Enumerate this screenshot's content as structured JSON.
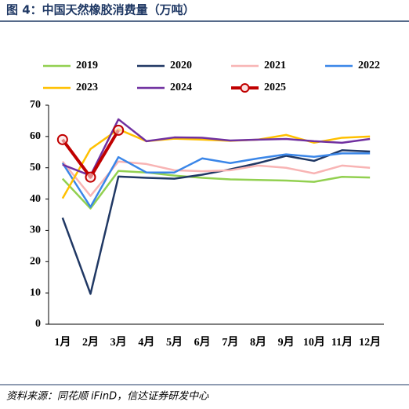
{
  "chart_data": {
    "type": "line",
    "title": "图 4：中国天然橡胶消费量（万吨）",
    "source": "资料来源：同花顺 iFinD，信达证券研发中心",
    "categories": [
      "1月",
      "2月",
      "3月",
      "4月",
      "5月",
      "6月",
      "7月",
      "8月",
      "9月",
      "10月",
      "11月",
      "12月"
    ],
    "ylim": [
      0,
      70
    ],
    "yticks": [
      0,
      10,
      20,
      30,
      40,
      50,
      60,
      70
    ],
    "series": [
      {
        "name": "2019",
        "color": "#92d050",
        "values": [
          46.5,
          37,
          49,
          48.5,
          47.5,
          46.8,
          46.3,
          46.1,
          45.9,
          45.5,
          47.1,
          46.9
        ]
      },
      {
        "name": "2020",
        "color": "#203864",
        "values": [
          34,
          9.7,
          47.2,
          46.8,
          46.5,
          47.8,
          49.5,
          51.5,
          53.8,
          52.2,
          55.6,
          55.2
        ]
      },
      {
        "name": "2021",
        "color": "#f8b4b4",
        "values": [
          52,
          41,
          52,
          51.2,
          49.2,
          48.9,
          49.2,
          50.7,
          50,
          48.2,
          50.7,
          50
        ]
      },
      {
        "name": "2022",
        "color": "#3a86e8",
        "values": [
          51.5,
          37.5,
          53.4,
          48.5,
          48.5,
          53,
          51.5,
          53,
          54.3,
          53.5,
          54.6,
          54.6
        ]
      },
      {
        "name": "2023",
        "color": "#ffc000",
        "values": [
          40.2,
          56,
          62.3,
          58.5,
          59.3,
          59,
          58.6,
          59,
          60.5,
          58,
          59.6,
          60
        ]
      },
      {
        "name": "2024",
        "color": "#7030a0",
        "values": [
          51,
          47.5,
          65.5,
          58.5,
          59.7,
          59.6,
          58.7,
          59,
          59.2,
          58.5,
          58,
          59.2
        ]
      },
      {
        "name": "2025",
        "color": "#c00000",
        "values": [
          59,
          47,
          62,
          null,
          null,
          null,
          null,
          null,
          null,
          null,
          null,
          null
        ]
      }
    ]
  }
}
